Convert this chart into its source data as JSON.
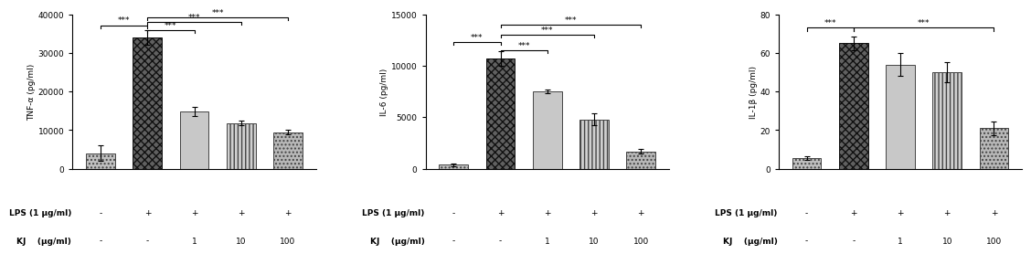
{
  "charts": [
    {
      "ylabel": "TNF-α (pg/ml)",
      "ylim": [
        0,
        40000
      ],
      "yticks": [
        0,
        10000,
        20000,
        30000,
        40000
      ],
      "values": [
        4000,
        34000,
        14800,
        11800,
        9500
      ],
      "errors": [
        2000,
        1800,
        1200,
        600,
        500
      ],
      "significance": [
        {
          "from": 0,
          "to": 1,
          "y": 37200,
          "label": "***"
        },
        {
          "from": 1,
          "to": 2,
          "y": 36000,
          "label": "***"
        },
        {
          "from": 1,
          "to": 3,
          "y": 38000,
          "label": "***"
        },
        {
          "from": 1,
          "to": 4,
          "y": 39200,
          "label": "***"
        }
      ]
    },
    {
      "ylabel": "IL-6 (pg/ml)",
      "ylim": [
        0,
        15000
      ],
      "yticks": [
        0,
        5000,
        10000,
        15000
      ],
      "values": [
        380,
        10700,
        7500,
        4800,
        1700
      ],
      "errors": [
        120,
        700,
        200,
        550,
        180
      ],
      "significance": [
        {
          "from": 0,
          "to": 1,
          "y": 12300,
          "label": "***"
        },
        {
          "from": 1,
          "to": 2,
          "y": 11500,
          "label": "***"
        },
        {
          "from": 1,
          "to": 3,
          "y": 13000,
          "label": "***"
        },
        {
          "from": 1,
          "to": 4,
          "y": 14000,
          "label": "***"
        }
      ]
    },
    {
      "ylabel": "IL-1β (pg/ml)",
      "ylim": [
        0,
        80
      ],
      "yticks": [
        0,
        20,
        40,
        60,
        80
      ],
      "values": [
        5.5,
        65,
        54,
        50,
        21
      ],
      "errors": [
        1.0,
        3.5,
        6.0,
        5.0,
        3.5
      ],
      "significance": [
        {
          "from": 0,
          "to": 1,
          "y": 73,
          "label": "***"
        },
        {
          "from": 1,
          "to": 4,
          "y": 73,
          "label": "***"
        }
      ]
    }
  ],
  "lps_row": [
    "-",
    "+",
    "+",
    "+",
    "+"
  ],
  "kj_row": [
    "-",
    "-",
    "1",
    "10",
    "100"
  ],
  "lps_label": "LPS (1 μg/ml)",
  "kj_label": "KJ    (μg/ml)",
  "label_fontsize": 6.5,
  "tick_fontsize": 6.5,
  "annot_fontsize": 6.5
}
